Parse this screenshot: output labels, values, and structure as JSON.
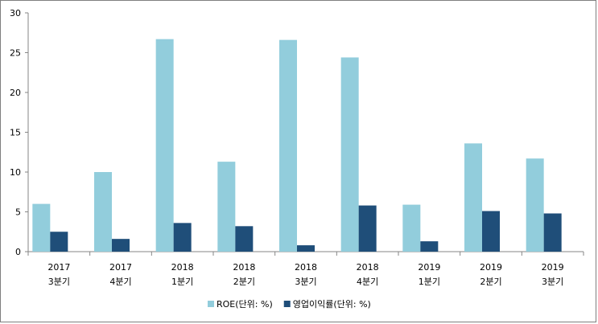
{
  "chart_data": {
    "type": "bar",
    "categories": [
      {
        "year": "2017",
        "quarter": "3분기"
      },
      {
        "year": "2017",
        "quarter": "4분기"
      },
      {
        "year": "2018",
        "quarter": "1분기"
      },
      {
        "year": "2018",
        "quarter": "2분기"
      },
      {
        "year": "2018",
        "quarter": "3분기"
      },
      {
        "year": "2018",
        "quarter": "4분기"
      },
      {
        "year": "2019",
        "quarter": "1분기"
      },
      {
        "year": "2019",
        "quarter": "2분기"
      },
      {
        "year": "2019",
        "quarter": "3분기"
      }
    ],
    "series": [
      {
        "name": "ROE(단위: %)",
        "color": "#92CDDC",
        "values": [
          6.0,
          10.0,
          26.7,
          11.3,
          26.6,
          24.4,
          5.9,
          13.6,
          11.7
        ]
      },
      {
        "name": "영업이익률(단위: %)",
        "color": "#1F4E79",
        "values": [
          2.5,
          1.6,
          3.6,
          3.2,
          0.8,
          5.8,
          1.3,
          5.1,
          4.8
        ]
      }
    ],
    "yticks": [
      "0",
      "5",
      "10",
      "15",
      "20",
      "25",
      "30"
    ],
    "ylim": [
      0,
      30
    ],
    "grid": false,
    "legend": "bottom"
  }
}
